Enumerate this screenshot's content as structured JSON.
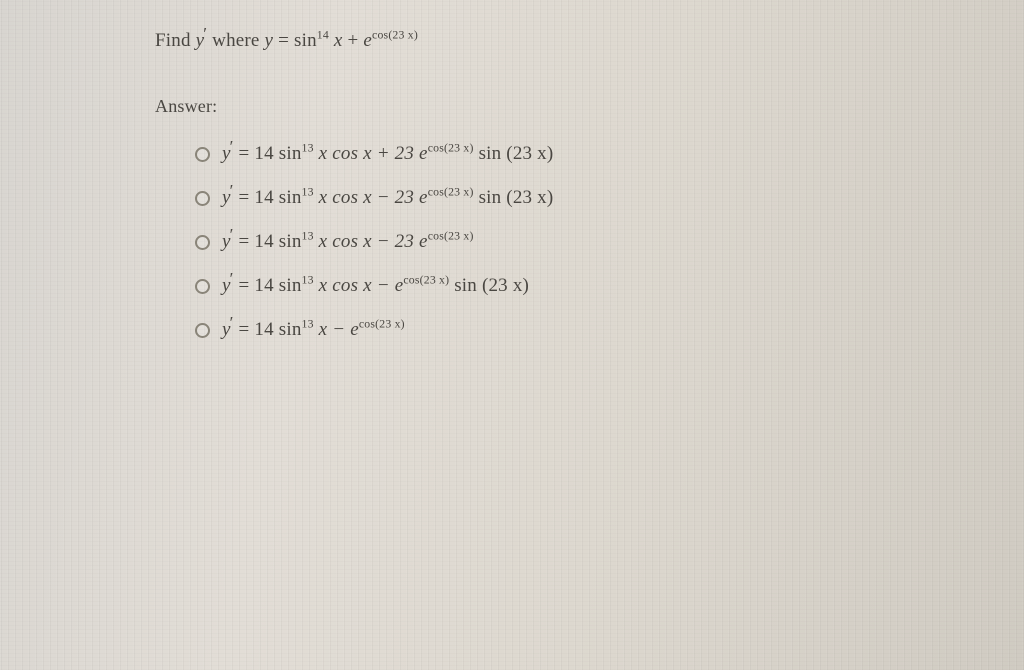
{
  "question": {
    "prefix": "Find ",
    "var_y": "y",
    "where": " where ",
    "eq": " = ",
    "sin": "sin",
    "exp14": "14",
    "x": " x",
    "plus": " + ",
    "e": "e",
    "cos": "cos",
    "exp_arg": "(23 x)"
  },
  "answer_label": "Answer:",
  "options": [
    {
      "lhs_y": "y",
      "eq": " = 14 ",
      "sin": "sin",
      "exp13": "13",
      "mid": " x  cos  x + 23 ",
      "e": "e",
      "cos": "cos",
      "earg": "(23 x)",
      "trail": " sin (23 x)"
    },
    {
      "lhs_y": "y",
      "eq": " = 14 ",
      "sin": "sin",
      "exp13": "13",
      "mid": " x  cos  x  −  23 ",
      "e": "e",
      "cos": "cos",
      "earg": "(23 x)",
      "trail": " sin (23 x)"
    },
    {
      "lhs_y": "y",
      "eq": " = 14 ",
      "sin": "sin",
      "exp13": "13",
      "mid": " x  cos  x − 23 ",
      "e": "e",
      "cos": "cos",
      "earg": "(23 x)",
      "trail": ""
    },
    {
      "lhs_y": "y",
      "eq": " = 14 ",
      "sin": "sin",
      "exp13": "13",
      "mid": " x  cos  x  −   ",
      "e": "e",
      "cos": "cos",
      "earg": "(23 x)",
      "trail": " sin (23 x)"
    },
    {
      "lhs_y": "y",
      "eq": " = 14 ",
      "sin": "sin",
      "exp13": "13",
      "mid": " x   −   ",
      "e": "e",
      "cos": "cos",
      "earg": "(23 x)",
      "trail": ""
    }
  ],
  "style": {
    "text_color": "#4a4742",
    "radio_border": "#8a8579",
    "font_size_body": 19,
    "font_size_sup": 12
  }
}
